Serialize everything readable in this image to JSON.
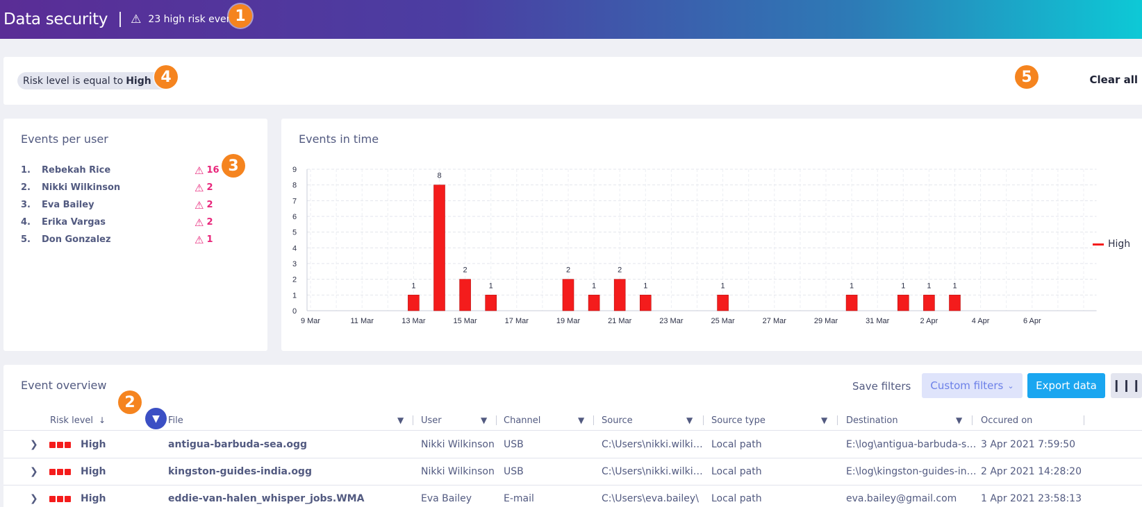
{
  "header": {
    "title": "Data security",
    "alert_text": "23 high risk events"
  },
  "badges": [
    "1",
    "2",
    "3",
    "4",
    "5"
  ],
  "filter": {
    "chip_prefix": "Risk level is equal to",
    "chip_value": "High",
    "clear_all": "Clear all"
  },
  "events_per_user": {
    "title": "Events per user",
    "items": [
      {
        "rank": "1.",
        "name": "Rebekah Rice",
        "count": "16"
      },
      {
        "rank": "2.",
        "name": "Nikki Wilkinson",
        "count": "2"
      },
      {
        "rank": "3.",
        "name": "Eva Bailey",
        "count": "2"
      },
      {
        "rank": "4.",
        "name": "Erika Vargas",
        "count": "2"
      },
      {
        "rank": "5.",
        "name": "Don Gonzalez",
        "count": "1"
      }
    ]
  },
  "events_in_time": {
    "title": "Events in time",
    "legend": "High"
  },
  "chart_data": {
    "type": "bar",
    "title": "Events in time",
    "xlabel": "",
    "ylabel": "",
    "ylim": [
      0,
      9
    ],
    "yticks": [
      "0",
      "1",
      "2",
      "3",
      "4",
      "5",
      "6",
      "7",
      "8",
      "9"
    ],
    "xticks": [
      "9 Mar",
      "11 Mar",
      "13 Mar",
      "15 Mar",
      "17 Mar",
      "19 Mar",
      "21 Mar",
      "23 Mar",
      "25 Mar",
      "27 Mar",
      "29 Mar",
      "31 Mar",
      "2 Apr",
      "4 Apr",
      "6 Apr"
    ],
    "grid": true,
    "legend_position": "right",
    "colors": {
      "High": "#f41c1c"
    },
    "series": [
      {
        "name": "High",
        "points": [
          {
            "date": "13 Mar",
            "day": 13,
            "value": 1
          },
          {
            "date": "14 Mar",
            "day": 14,
            "value": 8
          },
          {
            "date": "15 Mar",
            "day": 15,
            "value": 2
          },
          {
            "date": "16 Mar",
            "day": 16,
            "value": 1
          },
          {
            "date": "19 Mar",
            "day": 19,
            "value": 2
          },
          {
            "date": "20 Mar",
            "day": 20,
            "value": 1
          },
          {
            "date": "21 Mar",
            "day": 21,
            "value": 2
          },
          {
            "date": "22 Mar",
            "day": 22,
            "value": 1
          },
          {
            "date": "25 Mar",
            "day": 25,
            "value": 1
          },
          {
            "date": "30 Mar",
            "day": 30,
            "value": 1
          },
          {
            "date": "1 Apr",
            "day": 32,
            "value": 1
          },
          {
            "date": "2 Apr",
            "day": 33,
            "value": 1
          },
          {
            "date": "3 Apr",
            "day": 34,
            "value": 1
          }
        ]
      }
    ]
  },
  "overview": {
    "title": "Event overview",
    "save_filters": "Save filters",
    "custom_filters": "Custom filters",
    "export_data": "Export data",
    "columns": {
      "risk": "Risk level",
      "file": "File",
      "user": "User",
      "channel": "Channel",
      "source": "Source",
      "source_type": "Source type",
      "destination": "Destination",
      "occurred": "Occured on"
    },
    "rows": [
      {
        "risk": "High",
        "file": "antigua-barbuda-sea.ogg",
        "user": "Nikki Wilkinson",
        "channel": "USB",
        "source": "C:\\Users\\nikki.wilkinson\\",
        "source_type": "Local path",
        "destination": "E:\\log\\antigua-barbuda-sea.ogg",
        "occurred": "3 Apr 2021 7:59:50"
      },
      {
        "risk": "High",
        "file": "kingston-guides-india.ogg",
        "user": "Nikki Wilkinson",
        "channel": "USB",
        "source": "C:\\Users\\nikki.wilkinson\\",
        "source_type": "Local path",
        "destination": "E:\\log\\kingston-guides-india.ogg",
        "occurred": "2 Apr 2021 14:28:20"
      },
      {
        "risk": "High",
        "file": "eddie-van-halen_whisper_jobs.WMA",
        "user": "Eva Bailey",
        "channel": "E-mail",
        "source": "C:\\Users\\eva.bailey\\",
        "source_type": "Local path",
        "destination": "eva.bailey@gmail.com",
        "occurred": "1 Apr 2021 23:58:13"
      }
    ]
  }
}
